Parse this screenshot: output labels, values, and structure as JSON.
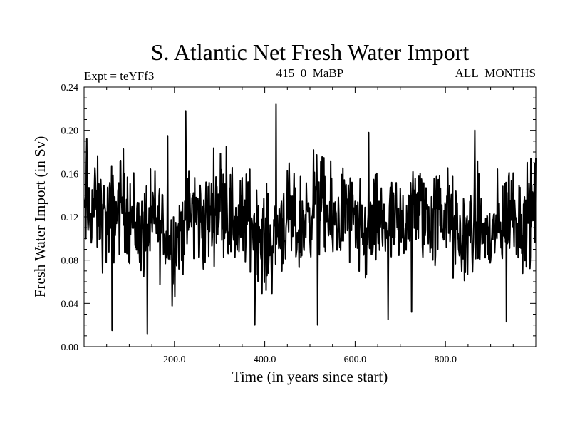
{
  "chart_data": {
    "type": "line",
    "title": "S. Atlantic Net Fresh Water Import",
    "subtitle_left": "Expt = teYFf3",
    "subtitle_center": "415_0_MaBP",
    "subtitle_right": "ALL_MONTHS",
    "xlabel": "Time (in years since start)",
    "ylabel": "Fresh Water Import (in Sv)",
    "xlim": [
      0,
      1000
    ],
    "ylim": [
      0.0,
      0.24
    ],
    "x_ticks": [
      200,
      400,
      600,
      800
    ],
    "x_tick_labels": [
      "200.0",
      "400.0",
      "600.0",
      "800.0"
    ],
    "y_ticks": [
      0.0,
      0.04,
      0.08,
      0.12,
      0.16,
      0.2,
      0.24
    ],
    "y_tick_labels": [
      "0.00",
      "0.04",
      "0.08",
      "0.12",
      "0.16",
      "0.20",
      "0.24"
    ],
    "grid": false,
    "series": [
      {
        "name": "fresh water import",
        "color": "#000000",
        "x_start": 1,
        "x_step": 1,
        "mean": 0.115,
        "n_points": 1000,
        "peaks": [
          {
            "x": 6,
            "y": 0.192
          },
          {
            "x": 62,
            "y": 0.015
          },
          {
            "x": 140,
            "y": 0.012
          },
          {
            "x": 185,
            "y": 0.195
          },
          {
            "x": 225,
            "y": 0.218
          },
          {
            "x": 315,
            "y": 0.185
          },
          {
            "x": 378,
            "y": 0.02
          },
          {
            "x": 425,
            "y": 0.224
          },
          {
            "x": 517,
            "y": 0.02
          },
          {
            "x": 630,
            "y": 0.198
          },
          {
            "x": 673,
            "y": 0.025
          },
          {
            "x": 725,
            "y": 0.032
          },
          {
            "x": 865,
            "y": 0.2
          },
          {
            "x": 935,
            "y": 0.023
          }
        ]
      }
    ]
  }
}
